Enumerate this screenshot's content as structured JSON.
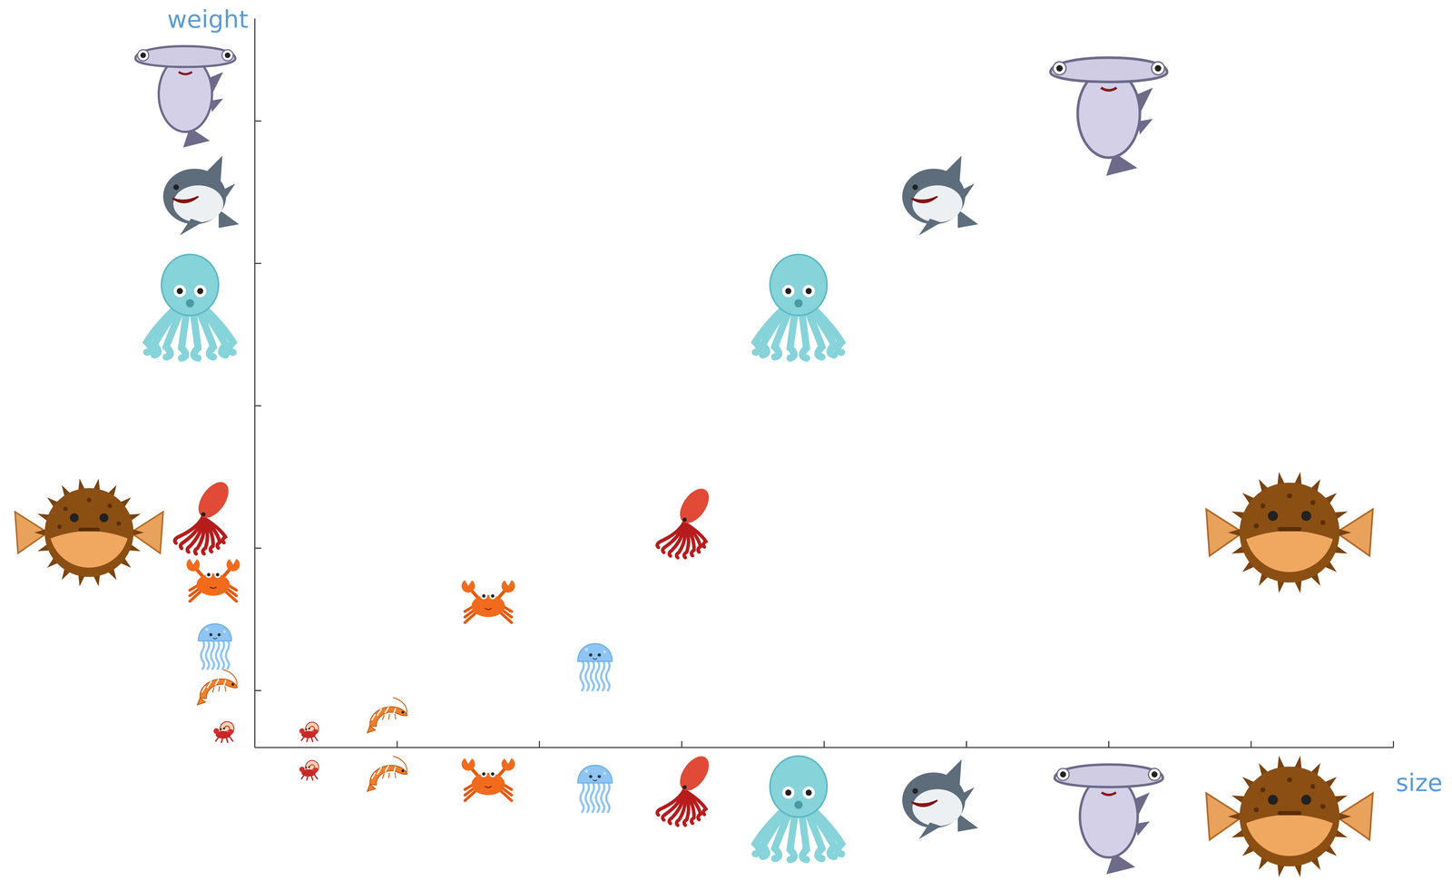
{
  "chart_data": {
    "type": "scatter",
    "x_label": "size",
    "y_label": "weight",
    "x": [
      0.39,
      0.94,
      1.64,
      2.39,
      3.03,
      3.82,
      4.77,
      6.0,
      7.27
    ],
    "values": [
      0.72,
      0.81,
      1.61,
      1.22,
      2.19,
      3.72,
      4.47,
      5.07,
      2.11
    ],
    "xlim": [
      0,
      8
    ],
    "xticks": [
      1,
      2,
      3,
      4,
      5,
      6,
      7,
      8
    ],
    "ylim": [
      0.6,
      5.72
    ],
    "yticks": [
      1,
      2,
      3,
      4,
      5
    ],
    "tick_labels": false,
    "grid": false,
    "marker": "icon"
  }
}
